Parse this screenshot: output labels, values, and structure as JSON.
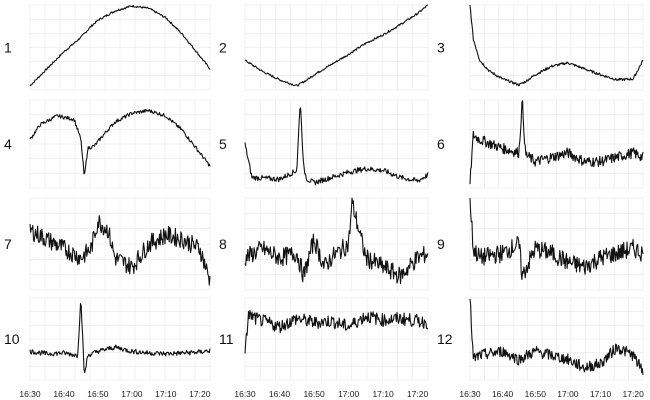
{
  "chart_data": {
    "type": "line",
    "layout": "small-multiples 4 rows x 3 columns",
    "grid": true,
    "x_ticks": [
      "16:30",
      "16:40",
      "16:50",
      "17:00",
      "17:10",
      "17:20"
    ],
    "x_range": [
      "16:30",
      "17:23"
    ],
    "y_axis_labels_shown": false,
    "panels": [
      {
        "label": "1",
        "x": [
          "16:30",
          "16:35",
          "16:40",
          "16:45",
          "16:48",
          "16:50",
          "16:55",
          "17:00",
          "17:05",
          "17:10",
          "17:15",
          "17:20",
          "17:23"
        ],
        "y": [
          0.05,
          0.25,
          0.45,
          0.62,
          0.75,
          0.82,
          0.93,
          0.99,
          0.96,
          0.85,
          0.65,
          0.4,
          0.25
        ]
      },
      {
        "label": "2",
        "x": [
          "16:30",
          "16:35",
          "16:40",
          "16:45",
          "16:48",
          "16:50",
          "16:55",
          "17:00",
          "17:05",
          "17:10",
          "17:15",
          "17:20",
          "17:23"
        ],
        "y": [
          0.35,
          0.22,
          0.12,
          0.05,
          0.12,
          0.18,
          0.3,
          0.42,
          0.55,
          0.65,
          0.77,
          0.9,
          1.0
        ]
      },
      {
        "label": "3",
        "x": [
          "16:30",
          "16:31",
          "16:33",
          "16:36",
          "16:40",
          "16:45",
          "16:47",
          "16:50",
          "16:55",
          "17:00",
          "17:05",
          "17:10",
          "17:15",
          "17:20",
          "17:23"
        ],
        "y": [
          1.0,
          0.6,
          0.35,
          0.22,
          0.13,
          0.06,
          0.1,
          0.18,
          0.28,
          0.32,
          0.25,
          0.18,
          0.12,
          0.13,
          0.35
        ]
      },
      {
        "label": "4",
        "x": [
          "16:30",
          "16:33",
          "16:38",
          "16:43",
          "16:45",
          "16:46",
          "16:47",
          "16:49",
          "16:52",
          "16:55",
          "17:00",
          "17:05",
          "17:10",
          "17:15",
          "17:20",
          "17:23"
        ],
        "y": [
          0.55,
          0.72,
          0.82,
          0.78,
          0.55,
          0.12,
          0.45,
          0.48,
          0.62,
          0.75,
          0.85,
          0.88,
          0.82,
          0.65,
          0.4,
          0.25
        ]
      },
      {
        "label": "5",
        "x": [
          "16:30",
          "16:32",
          "16:40",
          "16:45",
          "16:46",
          "16:47",
          "16:48",
          "16:50",
          "16:55",
          "17:00",
          "17:05",
          "17:10",
          "17:15",
          "17:20",
          "17:23"
        ],
        "y": [
          0.5,
          0.12,
          0.1,
          0.2,
          1.0,
          0.22,
          0.1,
          0.06,
          0.12,
          0.18,
          0.22,
          0.2,
          0.12,
          0.08,
          0.15
        ]
      },
      {
        "label": "6",
        "x": [
          "16:30",
          "16:31",
          "16:33",
          "16:40",
          "16:45",
          "16:46",
          "16:47",
          "16:50",
          "16:55",
          "17:00",
          "17:05",
          "17:10",
          "17:15",
          "17:20",
          "17:23"
        ],
        "y": [
          0.05,
          0.6,
          0.55,
          0.45,
          0.4,
          1.0,
          0.38,
          0.3,
          0.35,
          0.4,
          0.3,
          0.3,
          0.35,
          0.4,
          0.35
        ]
      },
      {
        "label": "7",
        "x": [
          "16:30",
          "16:35",
          "16:40",
          "16:45",
          "16:48",
          "16:50",
          "16:53",
          "16:55",
          "17:00",
          "17:05",
          "17:10",
          "17:15",
          "17:20",
          "17:23"
        ],
        "y": [
          0.65,
          0.55,
          0.45,
          0.35,
          0.45,
          0.75,
          0.65,
          0.35,
          0.25,
          0.5,
          0.6,
          0.55,
          0.45,
          0.1
        ]
      },
      {
        "label": "8",
        "x": [
          "16:30",
          "16:35",
          "16:40",
          "16:45",
          "16:47",
          "16:50",
          "16:53",
          "16:55",
          "17:00",
          "17:01",
          "17:05",
          "17:10",
          "17:15",
          "17:20",
          "17:23"
        ],
        "y": [
          0.35,
          0.45,
          0.35,
          0.4,
          0.15,
          0.55,
          0.25,
          0.35,
          0.5,
          0.95,
          0.35,
          0.25,
          0.15,
          0.35,
          0.4
        ]
      },
      {
        "label": "9",
        "x": [
          "16:30",
          "16:31",
          "16:33",
          "16:40",
          "16:45",
          "16:46",
          "16:50",
          "16:55",
          "17:00",
          "17:05",
          "17:10",
          "17:15",
          "17:20",
          "17:23"
        ],
        "y": [
          1.0,
          0.45,
          0.35,
          0.4,
          0.5,
          0.15,
          0.45,
          0.4,
          0.3,
          0.25,
          0.35,
          0.4,
          0.45,
          0.4
        ]
      },
      {
        "label": "10",
        "x": [
          "16:30",
          "16:35",
          "16:40",
          "16:44",
          "16:45",
          "16:46",
          "16:47",
          "16:50",
          "16:55",
          "17:00",
          "17:05",
          "17:10",
          "17:15",
          "17:20",
          "17:23"
        ],
        "y": [
          0.35,
          0.32,
          0.33,
          0.3,
          1.0,
          0.05,
          0.3,
          0.35,
          0.4,
          0.35,
          0.33,
          0.32,
          0.33,
          0.34,
          0.36
        ]
      },
      {
        "label": "11",
        "x": [
          "16:30",
          "16:31",
          "16:33",
          "16:40",
          "16:45",
          "16:50",
          "16:55",
          "17:00",
          "17:05",
          "17:10",
          "17:15",
          "17:20",
          "17:23"
        ],
        "y": [
          0.3,
          0.8,
          0.75,
          0.65,
          0.75,
          0.7,
          0.72,
          0.65,
          0.78,
          0.73,
          0.75,
          0.72,
          0.7
        ]
      },
      {
        "label": "12",
        "x": [
          "16:30",
          "16:31",
          "16:33",
          "16:40",
          "16:45",
          "16:50",
          "16:55",
          "17:00",
          "17:05",
          "17:10",
          "17:15",
          "17:20",
          "17:23"
        ],
        "y": [
          1.0,
          0.25,
          0.3,
          0.35,
          0.25,
          0.35,
          0.3,
          0.25,
          0.15,
          0.2,
          0.4,
          0.3,
          0.1
        ]
      }
    ]
  }
}
